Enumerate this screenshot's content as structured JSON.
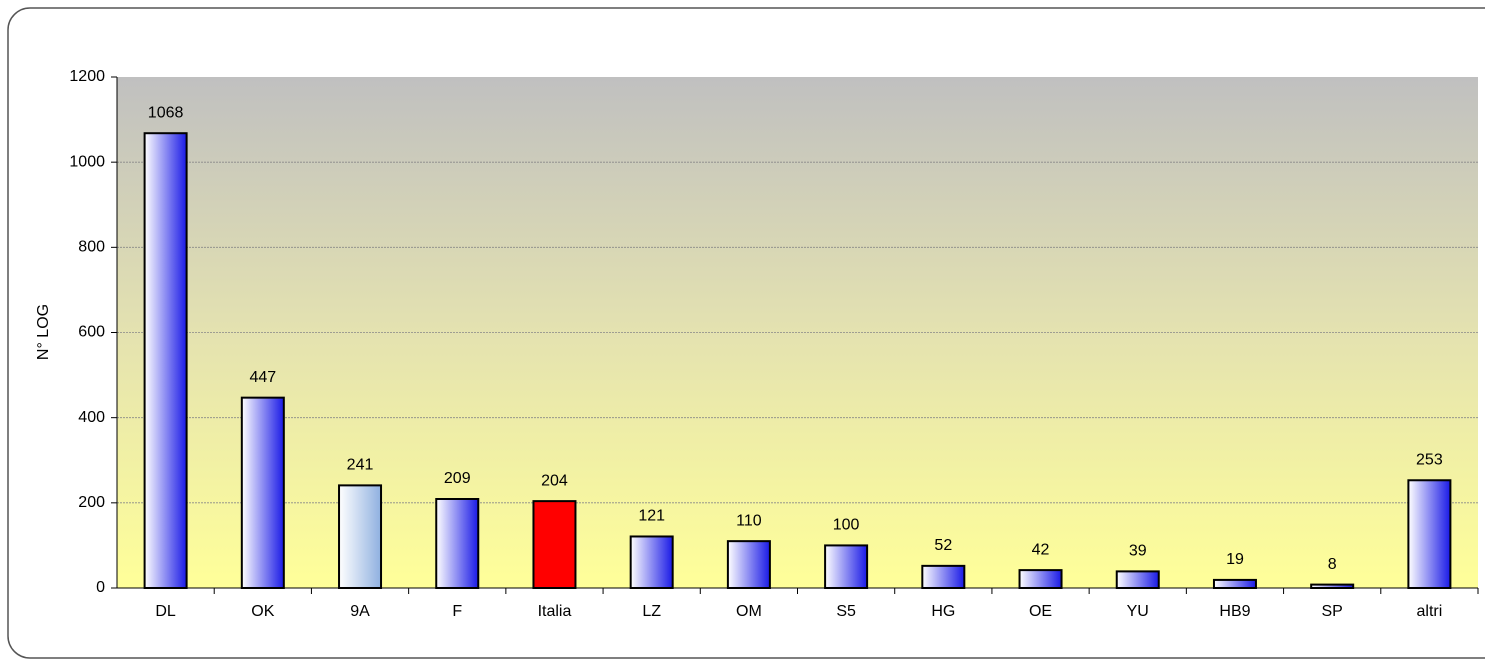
{
  "chart_data": {
    "type": "bar",
    "y_label": "N° LOG",
    "categories": [
      "DL",
      "OK",
      "9A",
      "F",
      "Italia",
      "LZ",
      "OM",
      "S5",
      "HG",
      "OE",
      "YU",
      "HB9",
      "SP",
      "altri"
    ],
    "values": [
      1068,
      447,
      241,
      209,
      204,
      121,
      110,
      100,
      52,
      42,
      39,
      19,
      8,
      253
    ],
    "colors": [
      "#1a1ae6",
      "#1a1ae6",
      "#8fb0e0",
      "#1a1ae6",
      "#ff0000",
      "#1a1ae6",
      "#1a1ae6",
      "#1a1ae6",
      "#1a1ae6",
      "#1a1ae6",
      "#1a1ae6",
      "#1a1ae6",
      "#1a1ae6",
      "#1a1ae6"
    ],
    "gradient": [
      true,
      true,
      true,
      true,
      false,
      true,
      true,
      true,
      true,
      true,
      true,
      true,
      true,
      true
    ],
    "ylim": [
      0,
      1200
    ],
    "yticks": [
      0,
      200,
      400,
      600,
      800,
      1000,
      1200
    ],
    "grid": true
  }
}
